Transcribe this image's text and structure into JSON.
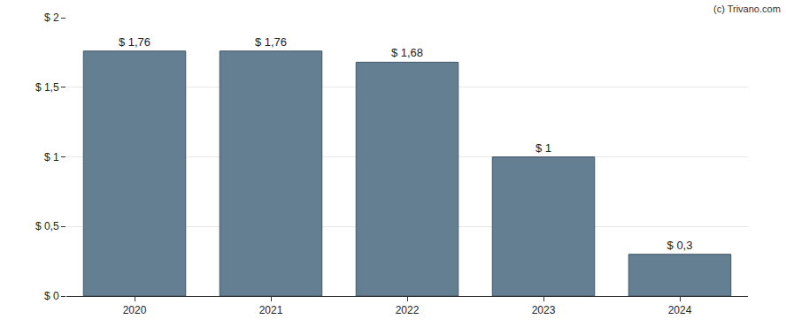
{
  "chart_data": {
    "type": "bar",
    "categories": [
      "2020",
      "2021",
      "2022",
      "2023",
      "2024"
    ],
    "values": [
      1.76,
      1.76,
      1.68,
      1,
      0.3
    ],
    "value_labels": [
      "$ 1,76",
      "$ 1,76",
      "$ 1,68",
      "$ 1",
      "$ 0,3"
    ],
    "data_labels": true,
    "color": "#647f91",
    "ylim": [
      0,
      2
    ],
    "yticks": [
      {
        "value": 0,
        "label": "$ 0"
      },
      {
        "value": 0.5,
        "label": "$ 0,5"
      },
      {
        "value": 1,
        "label": "$ 1"
      },
      {
        "value": 1.5,
        "label": "$ 1,5"
      },
      {
        "value": 2,
        "label": "$ 2"
      }
    ],
    "grid": true,
    "annotations": [
      "(c) Trivano.com"
    ]
  }
}
